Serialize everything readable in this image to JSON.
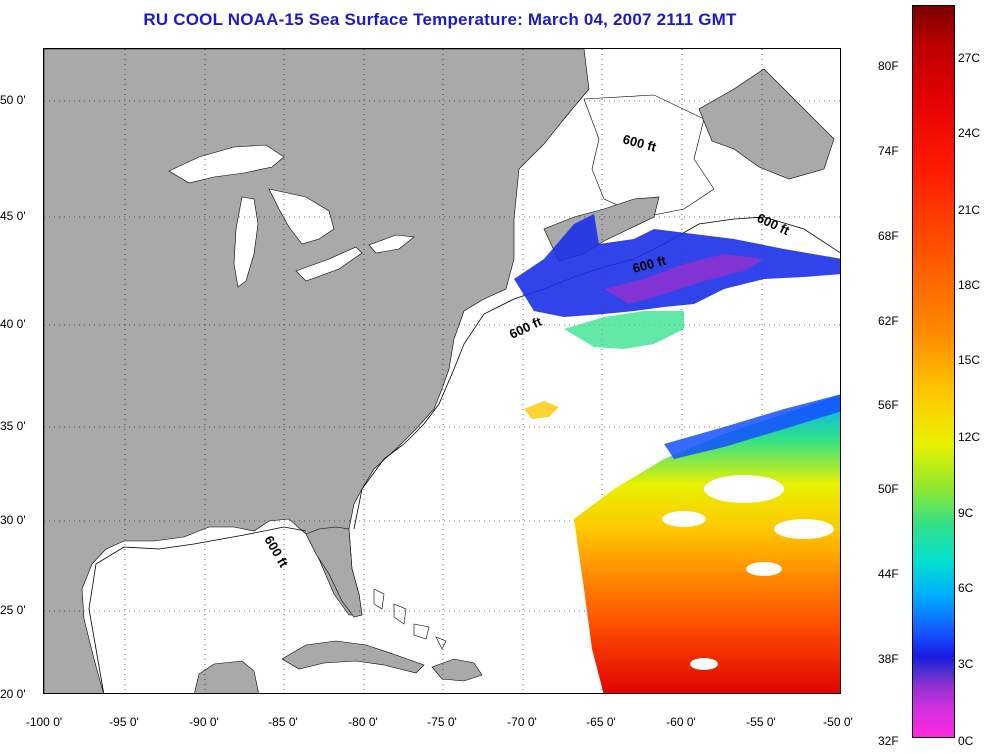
{
  "title": "RU COOL  NOAA-15  Sea Surface Temperature:  March 04, 2007 2111 GMT",
  "map": {
    "latitude_labels": [
      "50 0'",
      "45 0'",
      "40 0'",
      "35 0'",
      "30 0'",
      "25 0'",
      "20 0'"
    ],
    "longitude_labels": [
      "-100 0'",
      "-95 0'",
      "-90 0'",
      "-85 0'",
      "-80 0'",
      "-75 0'",
      "-70 0'",
      "-65 0'",
      "-60 0'",
      "-55 0'",
      "-50 0'"
    ],
    "isobath_labels": [
      "600 ft",
      "600 ft",
      "600 ft",
      "600 ft",
      "600 ft"
    ],
    "colors": {
      "land": "#a9a9a9",
      "ocean": "#ffffff",
      "grid": "#000000"
    }
  },
  "colorbar": {
    "fahrenheit_labels": [
      "80F",
      "74F",
      "68F",
      "62F",
      "56F",
      "50F",
      "44F",
      "38F",
      "32F"
    ],
    "celsius_labels": [
      "27C",
      "24C",
      "21C",
      "18C",
      "15C",
      "12C",
      "9C",
      "6C",
      "3C",
      "0C"
    ],
    "colors": [
      "#7a0000",
      "#e00000",
      "#ff5500",
      "#ff8c00",
      "#ffc800",
      "#e8f000",
      "#30e08a",
      "#00e0d0",
      "#1550ff",
      "#9030d0",
      "#ff28e0"
    ]
  }
}
